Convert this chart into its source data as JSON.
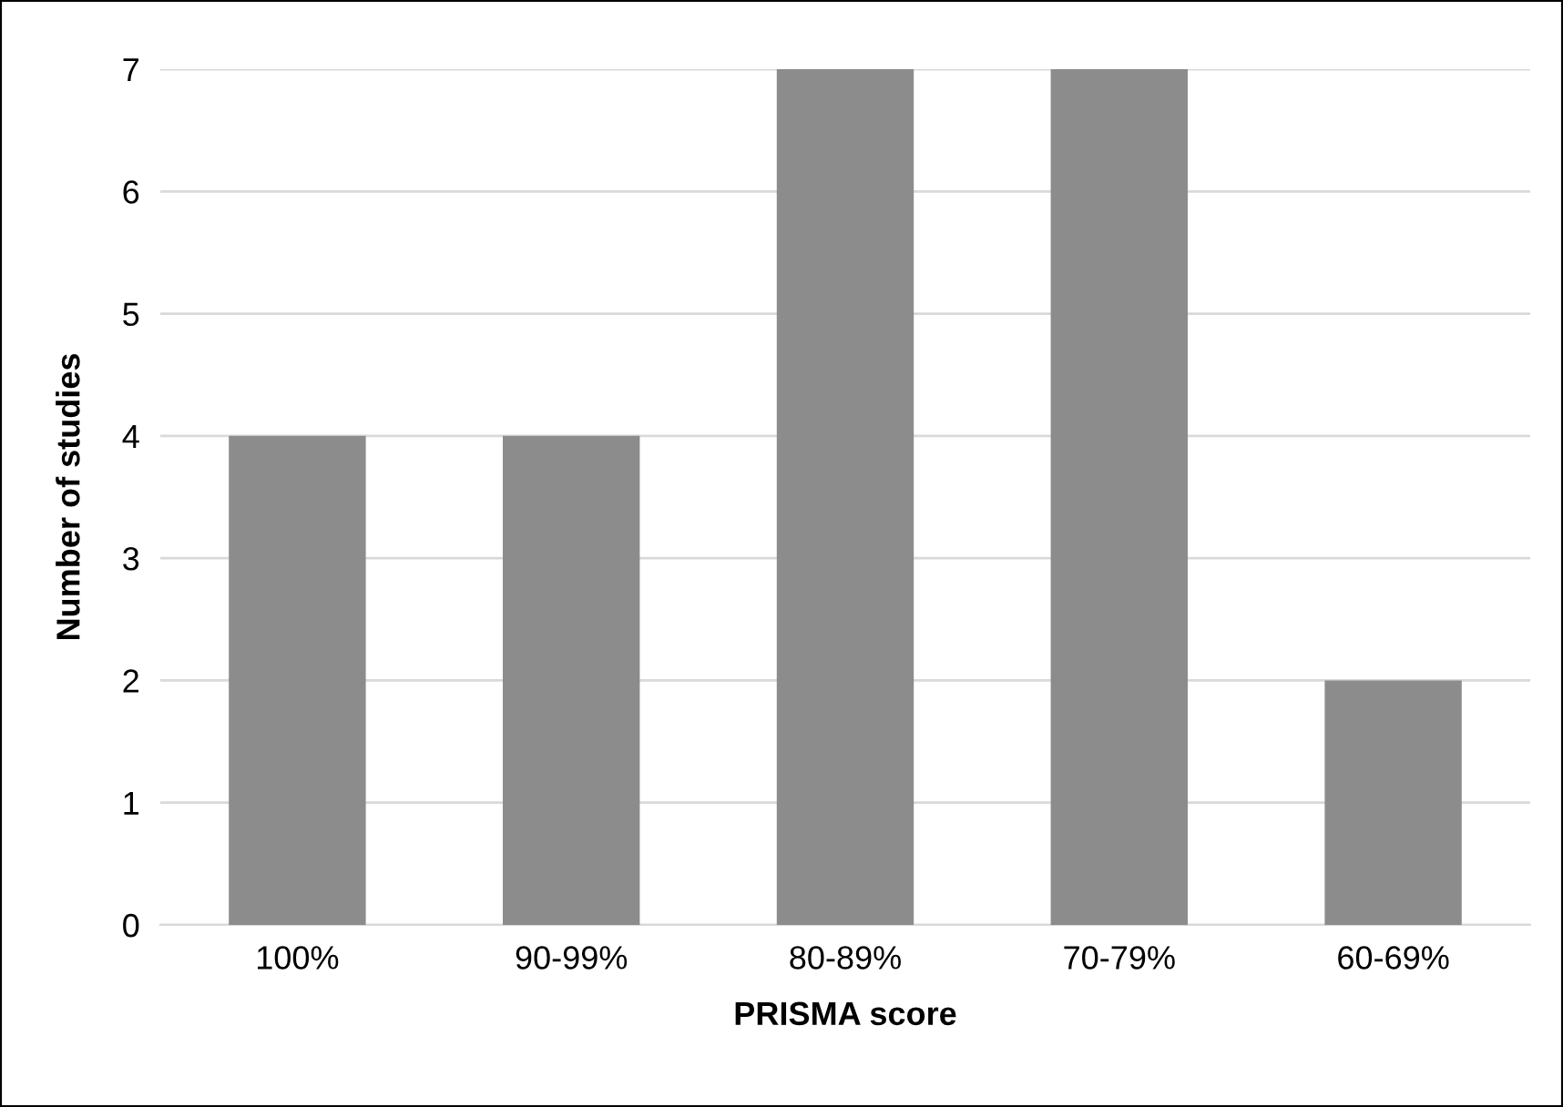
{
  "chart_data": {
    "type": "bar",
    "xlabel": "PRISMA score",
    "ylabel": "Number of studies",
    "categories": [
      "100%",
      "90-99%",
      "80-89%",
      "70-79%",
      "60-69%"
    ],
    "values": [
      4,
      4,
      7,
      7,
      2
    ],
    "color": "#8c8c8c",
    "ylim": [
      0,
      7
    ],
    "yticks": [
      0,
      1,
      2,
      3,
      4,
      5,
      6,
      7
    ],
    "grid": "y",
    "legend": false
  }
}
